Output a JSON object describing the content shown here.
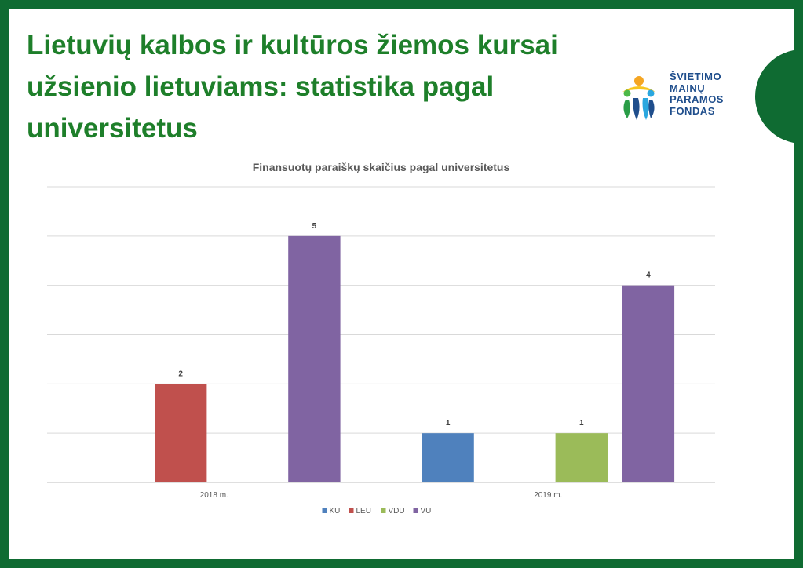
{
  "slide": {
    "title": "Lietuvių kalbos ir kultūros žiemos kursai užsienio lietuviams: statistika pagal universitetus",
    "frame_color": "#0f6b32",
    "title_color": "#1e7f2a"
  },
  "logo": {
    "lines": [
      "ŠVIETIMO",
      "MAINŲ",
      "PARAMOS",
      "FONDAS"
    ],
    "text_color": "#1f4e8c",
    "icon": "people-figures-logo-icon"
  },
  "chart_data": {
    "type": "bar",
    "title": "Finansuotų paraiškų skaičius pagal universitetus",
    "categories": [
      "2018 m.",
      "2019 m."
    ],
    "series": [
      {
        "name": "KU",
        "color": "#4f81bd",
        "values": [
          null,
          1
        ]
      },
      {
        "name": "LEU",
        "color": "#c0504d",
        "values": [
          2,
          null
        ]
      },
      {
        "name": "VDU",
        "color": "#9bbb59",
        "values": [
          null,
          1
        ]
      },
      {
        "name": "VU",
        "color": "#8064a2",
        "values": [
          5,
          4
        ]
      }
    ],
    "ylim": [
      0,
      6
    ],
    "grid": true,
    "legend_position": "bottom",
    "data_labels": true
  }
}
